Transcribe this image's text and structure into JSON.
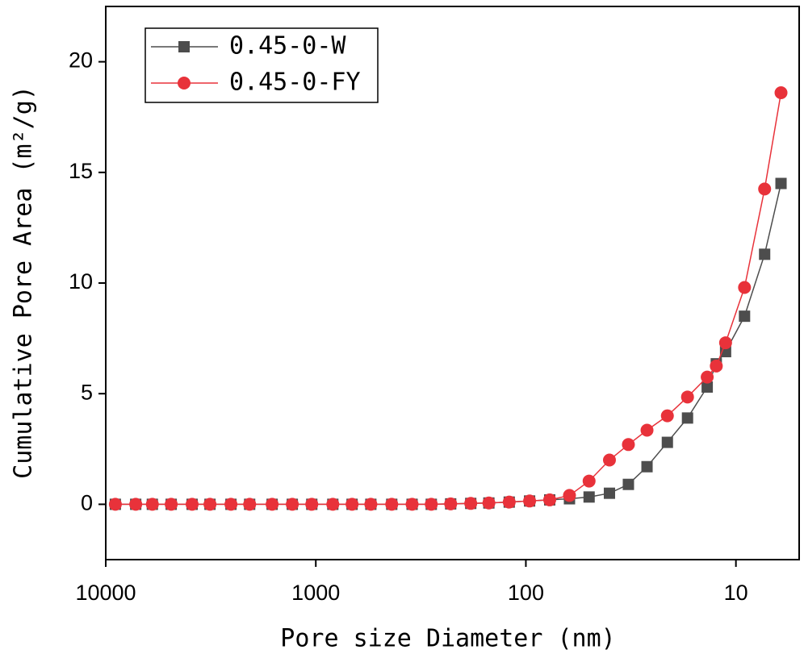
{
  "chart_data": {
    "type": "line",
    "xlabel": "Pore size Diameter (nm)",
    "ylabel": "Cumulative Pore Area (m²/g)",
    "xscale": "log",
    "x": [
      9000,
      7200,
      6000,
      4880,
      3880,
      3190,
      2535,
      2065,
      1614,
      1294,
      1045,
      830,
      672,
      547,
      435,
      348,
      282,
      228,
      183,
      150,
      120,
      96,
      77,
      62,
      50,
      40,
      32.5,
      26.5,
      21.2,
      17,
      13.7,
      12.4,
      11.2,
      9.1,
      7.3,
      6.1
    ],
    "series": [
      {
        "name": "0.45-0-W",
        "color": "#4d4d4d",
        "marker": "square",
        "values": [
          0,
          0,
          0,
          0,
          0,
          0,
          0,
          0,
          0,
          0,
          0,
          0,
          0,
          0,
          0,
          0,
          0,
          0.02,
          0.04,
          0.06,
          0.1,
          0.15,
          0.2,
          0.25,
          0.33,
          0.5,
          0.9,
          1.7,
          2.8,
          3.9,
          5.3,
          6.35,
          6.9,
          8.5,
          11.3,
          14.5
        ]
      },
      {
        "name": "0.45-0-FY",
        "color": "#e8323a",
        "marker": "circle",
        "values": [
          0,
          0,
          0,
          0,
          0,
          0,
          0,
          0,
          0,
          0,
          0,
          0,
          0,
          0,
          0,
          0,
          0,
          0.02,
          0.04,
          0.06,
          0.1,
          0.15,
          0.2,
          0.4,
          1.05,
          2.0,
          2.7,
          3.35,
          4.0,
          4.85,
          5.75,
          6.25,
          7.3,
          9.8,
          14.25,
          18.6
        ]
      }
    ],
    "xlim": [
      10000,
      5
    ],
    "xticks": [
      10000,
      1000,
      100,
      10
    ],
    "ylim": [
      -2.5,
      22.5
    ],
    "yticks": [
      0,
      5,
      10,
      15,
      20
    ],
    "legend": "upper left"
  }
}
